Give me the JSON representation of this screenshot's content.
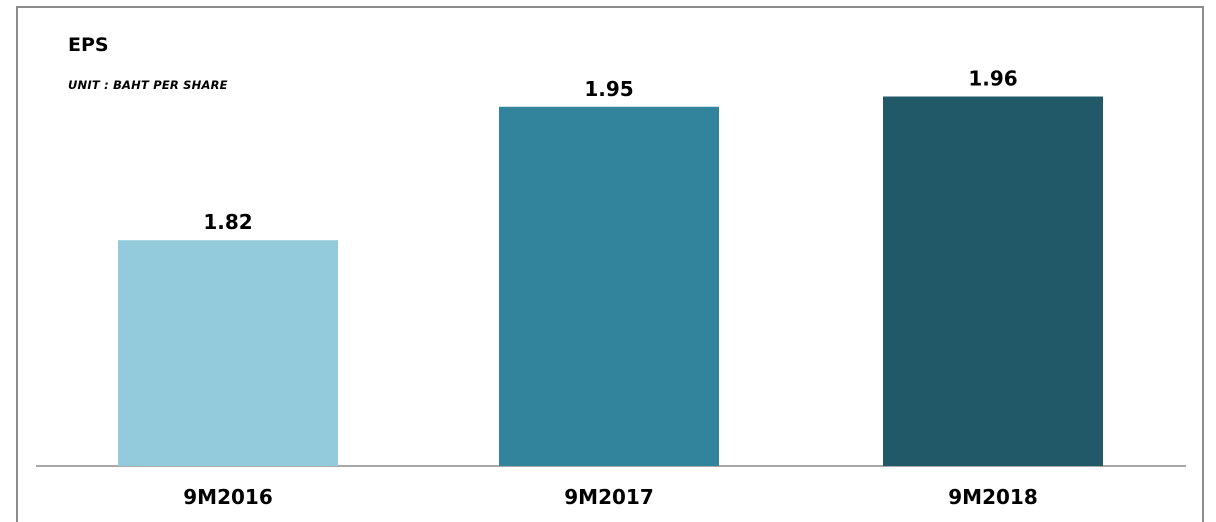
{
  "chart_data": {
    "type": "bar",
    "title": "EPS",
    "subtitle": "UNIT : BAHT PER SHARE",
    "categories": [
      "9M2016",
      "9M2017",
      "9M2018"
    ],
    "values": [
      1.82,
      1.95,
      1.96
    ],
    "data_labels": [
      "1.82",
      "1.95",
      "1.96"
    ],
    "colors": [
      "#93cbdc",
      "#31849b",
      "#215968"
    ],
    "ylim": [
      1.6,
      2.0
    ],
    "grid": false,
    "legend": "none"
  }
}
